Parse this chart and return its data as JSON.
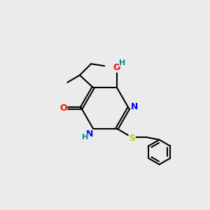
{
  "bg_color": "#ebebeb",
  "bond_color": "#000000",
  "bw": 1.5,
  "atom_colors": {
    "O": "#ff0000",
    "N": "#0000ff",
    "S": "#cccc00",
    "H": "#008b8b",
    "C": "#000000"
  },
  "figsize": [
    3.0,
    3.0
  ],
  "dpi": 100
}
